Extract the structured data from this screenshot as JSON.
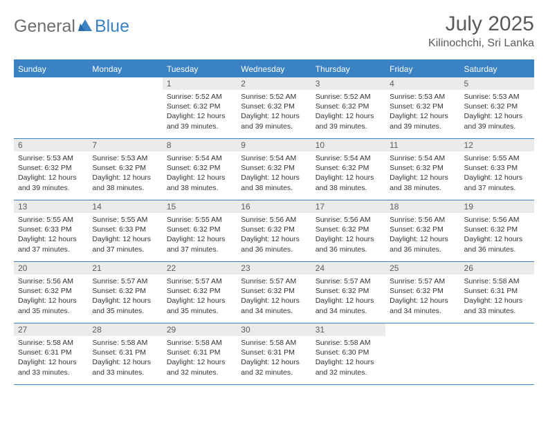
{
  "brand": {
    "part1": "General",
    "part2": "Blue"
  },
  "title": "July 2025",
  "location": "Kilinochchi, Sri Lanka",
  "colors": {
    "accent": "#3a82c4",
    "daynum_bg": "#ebebeb",
    "text_muted": "#5a5a5a",
    "text_body": "#333333",
    "background": "#ffffff"
  },
  "fonts": {
    "title_size": 30,
    "location_size": 16,
    "header_size": 12,
    "body_size": 10.5
  },
  "weekdays": [
    "Sunday",
    "Monday",
    "Tuesday",
    "Wednesday",
    "Thursday",
    "Friday",
    "Saturday"
  ],
  "weeks": [
    [
      {
        "empty": true
      },
      {
        "empty": true
      },
      {
        "num": "1",
        "sunrise": "Sunrise: 5:52 AM",
        "sunset": "Sunset: 6:32 PM",
        "day1": "Daylight: 12 hours",
        "day2": "and 39 minutes."
      },
      {
        "num": "2",
        "sunrise": "Sunrise: 5:52 AM",
        "sunset": "Sunset: 6:32 PM",
        "day1": "Daylight: 12 hours",
        "day2": "and 39 minutes."
      },
      {
        "num": "3",
        "sunrise": "Sunrise: 5:52 AM",
        "sunset": "Sunset: 6:32 PM",
        "day1": "Daylight: 12 hours",
        "day2": "and 39 minutes."
      },
      {
        "num": "4",
        "sunrise": "Sunrise: 5:53 AM",
        "sunset": "Sunset: 6:32 PM",
        "day1": "Daylight: 12 hours",
        "day2": "and 39 minutes."
      },
      {
        "num": "5",
        "sunrise": "Sunrise: 5:53 AM",
        "sunset": "Sunset: 6:32 PM",
        "day1": "Daylight: 12 hours",
        "day2": "and 39 minutes."
      }
    ],
    [
      {
        "num": "6",
        "sunrise": "Sunrise: 5:53 AM",
        "sunset": "Sunset: 6:32 PM",
        "day1": "Daylight: 12 hours",
        "day2": "and 39 minutes."
      },
      {
        "num": "7",
        "sunrise": "Sunrise: 5:53 AM",
        "sunset": "Sunset: 6:32 PM",
        "day1": "Daylight: 12 hours",
        "day2": "and 38 minutes."
      },
      {
        "num": "8",
        "sunrise": "Sunrise: 5:54 AM",
        "sunset": "Sunset: 6:32 PM",
        "day1": "Daylight: 12 hours",
        "day2": "and 38 minutes."
      },
      {
        "num": "9",
        "sunrise": "Sunrise: 5:54 AM",
        "sunset": "Sunset: 6:32 PM",
        "day1": "Daylight: 12 hours",
        "day2": "and 38 minutes."
      },
      {
        "num": "10",
        "sunrise": "Sunrise: 5:54 AM",
        "sunset": "Sunset: 6:32 PM",
        "day1": "Daylight: 12 hours",
        "day2": "and 38 minutes."
      },
      {
        "num": "11",
        "sunrise": "Sunrise: 5:54 AM",
        "sunset": "Sunset: 6:32 PM",
        "day1": "Daylight: 12 hours",
        "day2": "and 38 minutes."
      },
      {
        "num": "12",
        "sunrise": "Sunrise: 5:55 AM",
        "sunset": "Sunset: 6:33 PM",
        "day1": "Daylight: 12 hours",
        "day2": "and 37 minutes."
      }
    ],
    [
      {
        "num": "13",
        "sunrise": "Sunrise: 5:55 AM",
        "sunset": "Sunset: 6:33 PM",
        "day1": "Daylight: 12 hours",
        "day2": "and 37 minutes."
      },
      {
        "num": "14",
        "sunrise": "Sunrise: 5:55 AM",
        "sunset": "Sunset: 6:33 PM",
        "day1": "Daylight: 12 hours",
        "day2": "and 37 minutes."
      },
      {
        "num": "15",
        "sunrise": "Sunrise: 5:55 AM",
        "sunset": "Sunset: 6:32 PM",
        "day1": "Daylight: 12 hours",
        "day2": "and 37 minutes."
      },
      {
        "num": "16",
        "sunrise": "Sunrise: 5:56 AM",
        "sunset": "Sunset: 6:32 PM",
        "day1": "Daylight: 12 hours",
        "day2": "and 36 minutes."
      },
      {
        "num": "17",
        "sunrise": "Sunrise: 5:56 AM",
        "sunset": "Sunset: 6:32 PM",
        "day1": "Daylight: 12 hours",
        "day2": "and 36 minutes."
      },
      {
        "num": "18",
        "sunrise": "Sunrise: 5:56 AM",
        "sunset": "Sunset: 6:32 PM",
        "day1": "Daylight: 12 hours",
        "day2": "and 36 minutes."
      },
      {
        "num": "19",
        "sunrise": "Sunrise: 5:56 AM",
        "sunset": "Sunset: 6:32 PM",
        "day1": "Daylight: 12 hours",
        "day2": "and 36 minutes."
      }
    ],
    [
      {
        "num": "20",
        "sunrise": "Sunrise: 5:56 AM",
        "sunset": "Sunset: 6:32 PM",
        "day1": "Daylight: 12 hours",
        "day2": "and 35 minutes."
      },
      {
        "num": "21",
        "sunrise": "Sunrise: 5:57 AM",
        "sunset": "Sunset: 6:32 PM",
        "day1": "Daylight: 12 hours",
        "day2": "and 35 minutes."
      },
      {
        "num": "22",
        "sunrise": "Sunrise: 5:57 AM",
        "sunset": "Sunset: 6:32 PM",
        "day1": "Daylight: 12 hours",
        "day2": "and 35 minutes."
      },
      {
        "num": "23",
        "sunrise": "Sunrise: 5:57 AM",
        "sunset": "Sunset: 6:32 PM",
        "day1": "Daylight: 12 hours",
        "day2": "and 34 minutes."
      },
      {
        "num": "24",
        "sunrise": "Sunrise: 5:57 AM",
        "sunset": "Sunset: 6:32 PM",
        "day1": "Daylight: 12 hours",
        "day2": "and 34 minutes."
      },
      {
        "num": "25",
        "sunrise": "Sunrise: 5:57 AM",
        "sunset": "Sunset: 6:32 PM",
        "day1": "Daylight: 12 hours",
        "day2": "and 34 minutes."
      },
      {
        "num": "26",
        "sunrise": "Sunrise: 5:58 AM",
        "sunset": "Sunset: 6:31 PM",
        "day1": "Daylight: 12 hours",
        "day2": "and 33 minutes."
      }
    ],
    [
      {
        "num": "27",
        "sunrise": "Sunrise: 5:58 AM",
        "sunset": "Sunset: 6:31 PM",
        "day1": "Daylight: 12 hours",
        "day2": "and 33 minutes."
      },
      {
        "num": "28",
        "sunrise": "Sunrise: 5:58 AM",
        "sunset": "Sunset: 6:31 PM",
        "day1": "Daylight: 12 hours",
        "day2": "and 33 minutes."
      },
      {
        "num": "29",
        "sunrise": "Sunrise: 5:58 AM",
        "sunset": "Sunset: 6:31 PM",
        "day1": "Daylight: 12 hours",
        "day2": "and 32 minutes."
      },
      {
        "num": "30",
        "sunrise": "Sunrise: 5:58 AM",
        "sunset": "Sunset: 6:31 PM",
        "day1": "Daylight: 12 hours",
        "day2": "and 32 minutes."
      },
      {
        "num": "31",
        "sunrise": "Sunrise: 5:58 AM",
        "sunset": "Sunset: 6:30 PM",
        "day1": "Daylight: 12 hours",
        "day2": "and 32 minutes."
      },
      {
        "empty": true
      },
      {
        "empty": true
      }
    ]
  ]
}
